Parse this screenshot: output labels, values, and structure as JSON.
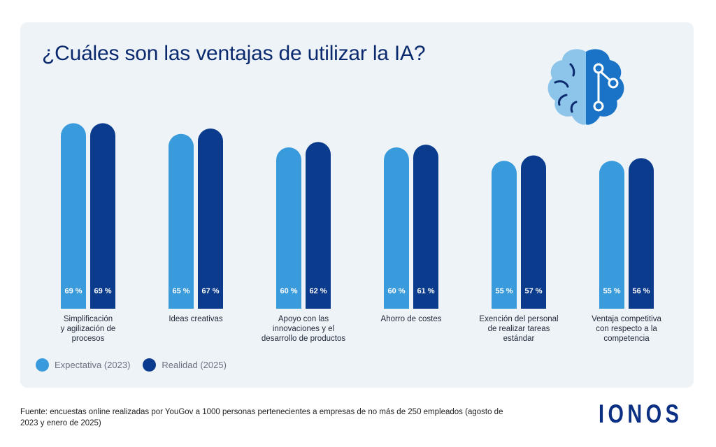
{
  "title": "¿Cuáles son las ventajas de utilizar la IA?",
  "colors": {
    "expectation": "#3a9bdc",
    "reality": "#0b3b8c",
    "title": "#0b2a6e",
    "panel": "#eef3f8"
  },
  "chart_data": {
    "type": "bar",
    "title": "¿Cuáles son las ventajas de utilizar la IA?",
    "categories": [
      [
        "Simplificación",
        "y agilización de",
        "procesos"
      ],
      [
        "Ideas creativas"
      ],
      [
        "Apoyo con las",
        "innovaciones y el",
        "desarrollo de productos"
      ],
      [
        "Ahorro de costes"
      ],
      [
        "Exención del personal",
        "de realizar tareas",
        "estándar"
      ],
      [
        "Ventaja competitiva",
        "con respecto a la",
        "competencia"
      ]
    ],
    "series": [
      {
        "name": "Expectativa (2023)",
        "values": [
          69,
          65,
          60,
          60,
          55,
          55
        ],
        "color": "#3a9bdc"
      },
      {
        "name": "Realidad (2025)",
        "values": [
          69,
          67,
          62,
          61,
          57,
          56
        ],
        "color": "#0b3b8c"
      }
    ],
    "unit": "%",
    "legend_position": "bottom-left",
    "grid": false
  },
  "legend": [
    {
      "label": "Expectativa (2023)",
      "color": "#3a9bdc"
    },
    {
      "label": "Realidad (2025)",
      "color": "#0b3b8c"
    }
  ],
  "source": "Fuente: encuestas online realizadas por YouGov a 1000 personas pertenecientes a empresas de no más de 250 empleados (agosto de 2023 y enero de 2025)",
  "logo": "IONOS",
  "icons": {
    "brain": "brain-network-icon"
  }
}
